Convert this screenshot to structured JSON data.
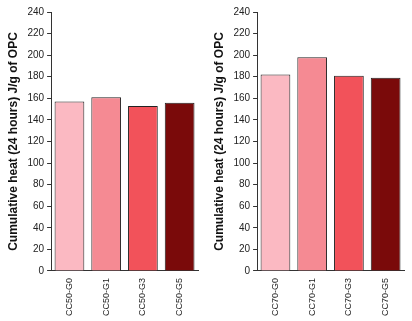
{
  "chart_data": [
    {
      "type": "bar",
      "categories": [
        "CC50-G0",
        "CC50-G1",
        "CC50-G3",
        "CC50-G5"
      ],
      "values": [
        157,
        161,
        153,
        156
      ],
      "colors": [
        "#fbb9c2",
        "#f58a93",
        "#f2525a",
        "#7a0a0a"
      ],
      "ylabel": "Cumulative heat (24 hours) J/g of OPC",
      "ylim": [
        0,
        240
      ],
      "yticks": [
        0,
        20,
        40,
        60,
        80,
        100,
        120,
        140,
        160,
        180,
        200,
        220,
        240
      ],
      "grid": false
    },
    {
      "type": "bar",
      "categories": [
        "CC70-G0",
        "CC70-G1",
        "CC70-G3",
        "CC70-G5"
      ],
      "values": [
        182,
        198,
        181,
        179
      ],
      "colors": [
        "#fbb9c2",
        "#f58a93",
        "#f2525a",
        "#7a0a0a"
      ],
      "ylabel": "Cumulative heat (24 hours) J/g of OPC",
      "ylim": [
        0,
        240
      ],
      "yticks": [
        0,
        20,
        40,
        60,
        80,
        100,
        120,
        140,
        160,
        180,
        200,
        220,
        240
      ],
      "grid": false
    }
  ]
}
